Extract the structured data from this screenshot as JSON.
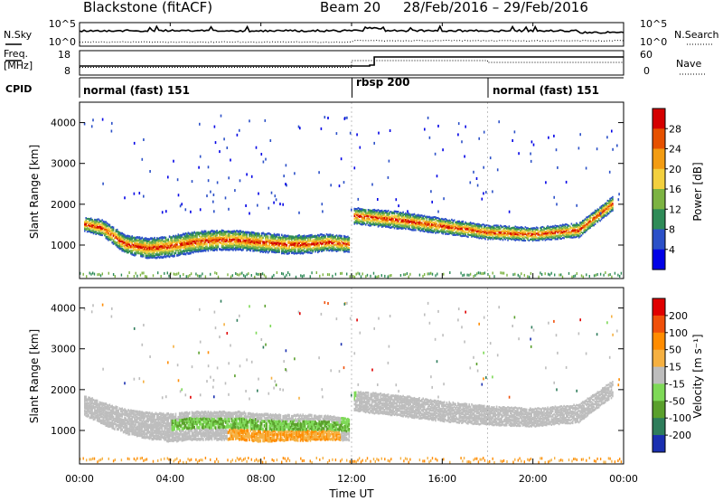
{
  "header": {
    "station": "Blackstone (fitACF)",
    "beam": "Beam 20",
    "date_range": "28/Feb/2016 – 29/Feb/2016"
  },
  "top_panels": {
    "nsky_label": "N.Sky",
    "nsearch_label": "N.Search",
    "freq_label_1": "Freq.",
    "freq_label_2": "[MHz]",
    "nave_label": "Nave",
    "cpid_label": "CPID",
    "noise_left_ticks": [
      "10^5",
      "10^0"
    ],
    "noise_right_ticks": [
      "10^5",
      "10^0"
    ],
    "freq_ticks": [
      "18",
      "8"
    ],
    "nave_ticks": [
      "60",
      "0"
    ],
    "cpid_segments": [
      {
        "label": "normal (fast) 151",
        "start_hour": 0
      },
      {
        "label": "rbsp 200",
        "start_hour": 12
      },
      {
        "label": "normal (fast) 151",
        "start_hour": 18
      }
    ]
  },
  "axes": {
    "ylabel": "Slant Range [km]",
    "xlabel": "Time UT",
    "y_ticks": [
      "1000",
      "2000",
      "3000",
      "4000"
    ],
    "x_ticks": [
      "00:00",
      "04:00",
      "08:00",
      "12:00",
      "16:00",
      "20:00",
      "00:00"
    ]
  },
  "power_colorbar": {
    "label": "Power [dB]",
    "ticks": [
      "4",
      "8",
      "12",
      "16",
      "20",
      "24",
      "28"
    ],
    "colors": [
      "#0000e6",
      "#2b50c8",
      "#2e8b57",
      "#7cb342",
      "#f3d03e",
      "#f39c12",
      "#e65100",
      "#d50000"
    ]
  },
  "velocity_colorbar": {
    "label": "Velocity [m s⁻¹]",
    "ticks": [
      "200",
      "100",
      "50",
      "15",
      "-15",
      "-50",
      "-100",
      "-200"
    ],
    "colors": [
      "#1a2fb0",
      "#2e7d5b",
      "#5aa02c",
      "#7ed957",
      "#bdbdbd",
      "#f5b041",
      "#ff8c00",
      "#f0500a",
      "#e00000"
    ]
  },
  "chart_data": [
    {
      "type": "heatmap",
      "title": "",
      "xlabel": "",
      "ylabel": "Slant Range [km]",
      "xlim_hours": [
        0,
        24
      ],
      "ylim_km": [
        180,
        4500
      ],
      "colorbar": "Power [dB]",
      "bands": [
        {
          "name": "main echo",
          "x": [
            0.2,
            1,
            2,
            3,
            4,
            5,
            6,
            7,
            8,
            9,
            10,
            11,
            11.9
          ],
          "y": [
            1500,
            1400,
            1000,
            900,
            950,
            1050,
            1100,
            1100,
            1050,
            1000,
            1000,
            1050,
            1000
          ],
          "width_km": [
            350,
            400,
            450,
            500,
            520,
            520,
            500,
            480,
            480,
            460,
            450,
            420,
            380
          ]
        },
        {
          "name": "main echo",
          "x": [
            12.1,
            14,
            16,
            18,
            20,
            22,
            23.5
          ],
          "y": [
            1700,
            1600,
            1450,
            1300,
            1250,
            1350,
            2000
          ],
          "width_km": [
            400,
            420,
            380,
            350,
            330,
            350,
            350
          ]
        }
      ]
    },
    {
      "type": "heatmap",
      "title": "",
      "xlabel": "Time UT",
      "ylabel": "Slant Range [km]",
      "xlim_hours": [
        0,
        24
      ],
      "ylim_km": [
        180,
        4500
      ],
      "colorbar": "Velocity [m s⁻¹]",
      "bands": [
        {
          "name": "main echo",
          "x": [
            0.2,
            1,
            2,
            3,
            4,
            5,
            6,
            7,
            8,
            9,
            10,
            11,
            11.9
          ],
          "y": [
            1600,
            1400,
            1200,
            1100,
            1050,
            1100,
            1100,
            1100,
            1050,
            1050,
            1050,
            1050,
            1000
          ],
          "width_km": [
            500,
            550,
            600,
            650,
            700,
            700,
            700,
            700,
            700,
            650,
            650,
            600,
            550
          ]
        },
        {
          "name": "main echo",
          "x": [
            12.1,
            14,
            16,
            18,
            20,
            22,
            23.5
          ],
          "y": [
            1700,
            1600,
            1450,
            1350,
            1300,
            1400,
            2000
          ],
          "width_km": [
            500,
            520,
            500,
            480,
            450,
            450,
            400
          ]
        }
      ]
    }
  ]
}
